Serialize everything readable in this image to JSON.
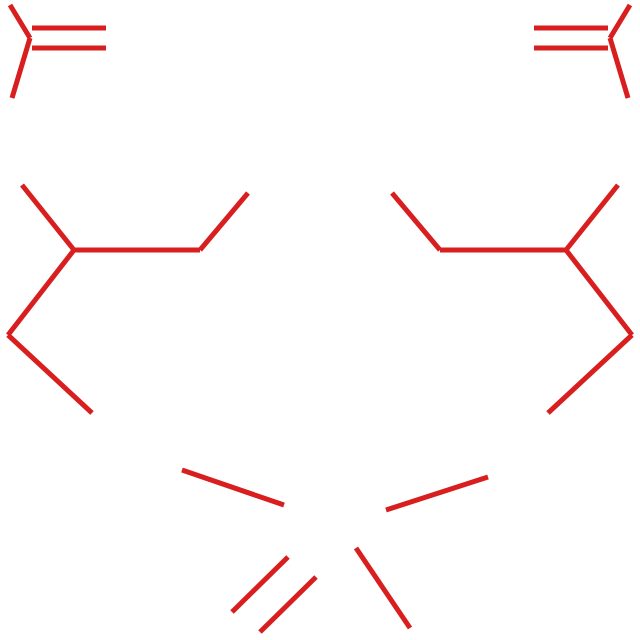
{
  "diagram": {
    "type": "skeletal-structure-fragment",
    "bond_color": "#d81e1e",
    "background": "#ffffff",
    "labels": []
  }
}
